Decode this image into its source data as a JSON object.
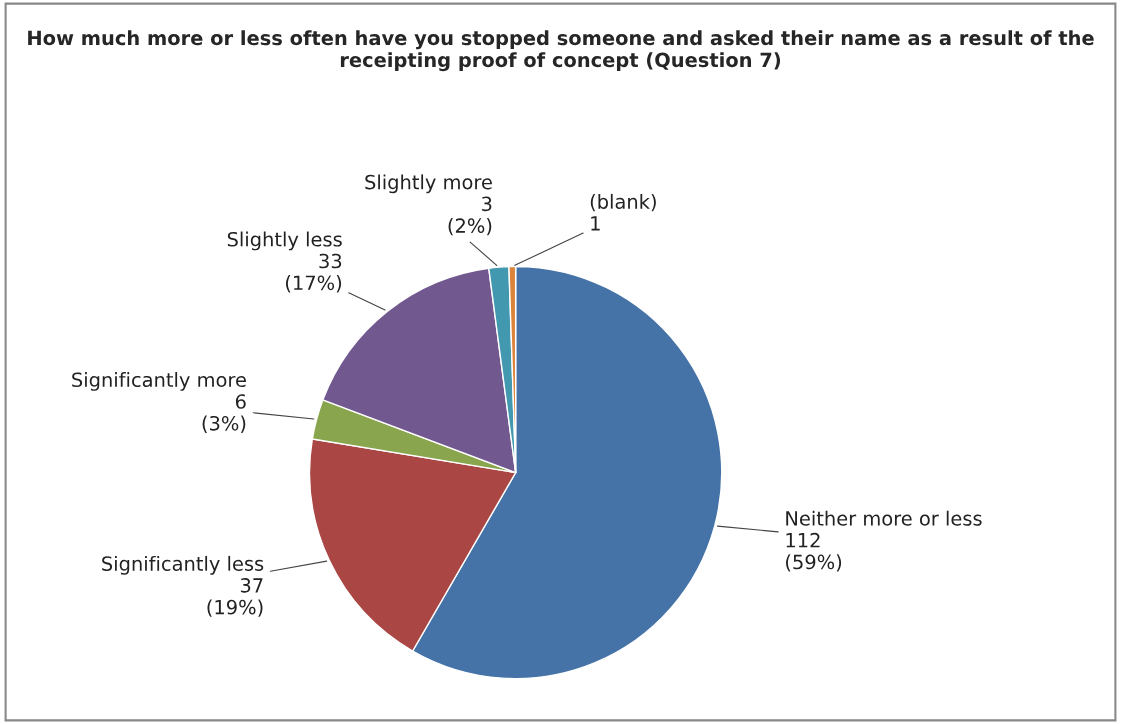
{
  "chart_data": {
    "type": "pie",
    "title": "How much more or less often have you stopped someone and asked their name as a result of the receipting proof of concept (Question 7)",
    "categories": [
      "Neither more or less",
      "Significantly less",
      "Significantly more",
      "Slightly less",
      "Slightly more",
      "(blank)"
    ],
    "values": [
      112,
      37,
      6,
      33,
      3,
      1
    ],
    "value_labels": [
      "112\n(59%)",
      "37\n(19%)",
      "6\n(3%)",
      "33\n(17%)",
      "3\n(2%)",
      "1"
    ],
    "colors": [
      "#4572a7",
      "#aa4643",
      "#89a54e",
      "#71588f",
      "#4198af",
      "#db843d"
    ],
    "legend": false
  }
}
